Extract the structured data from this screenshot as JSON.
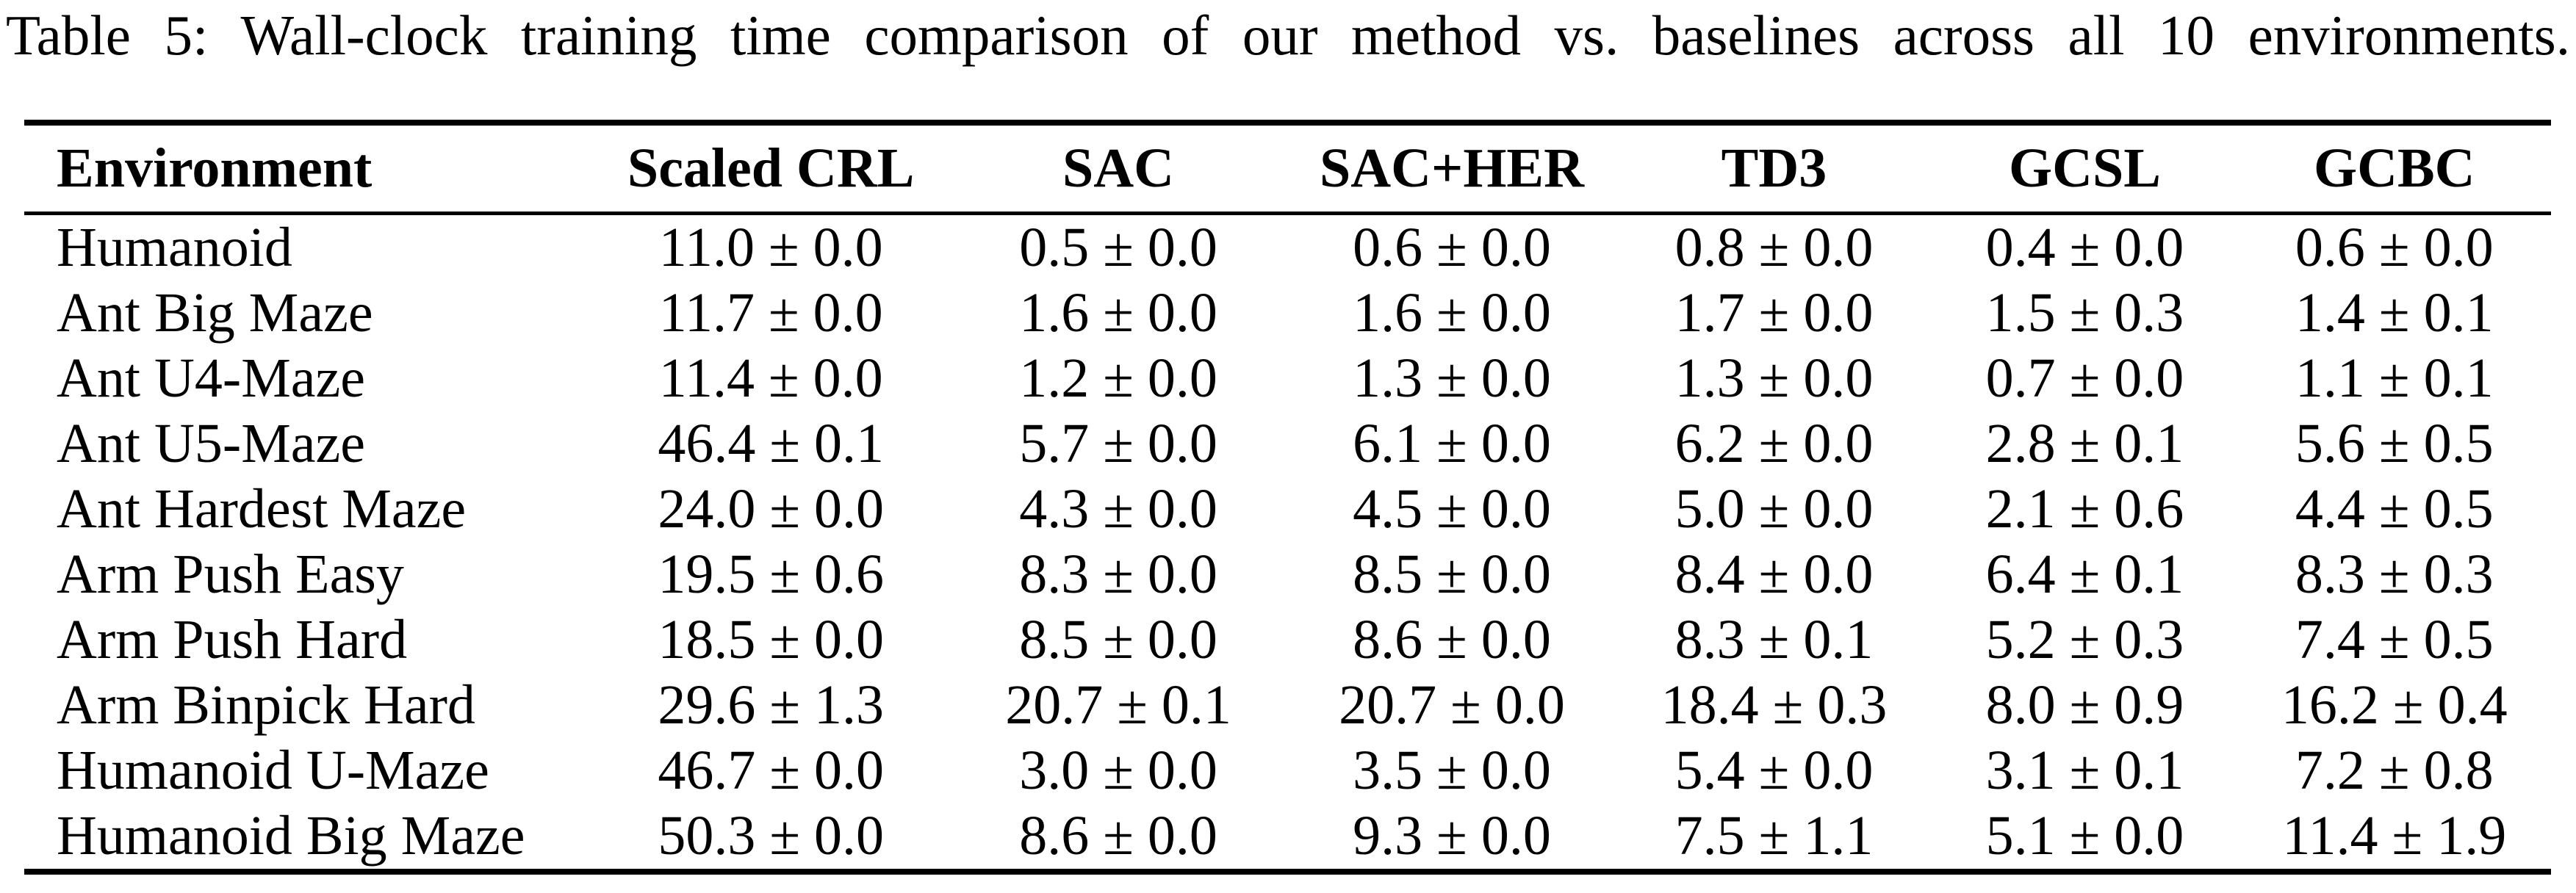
{
  "caption": "Table 5: Wall-clock training time comparison of our method vs. baselines across all 10 environments.",
  "colors": {
    "text": "#000000",
    "background": "#ffffff",
    "rule": "#000000"
  },
  "table": {
    "columns": [
      "Environment",
      "Scaled CRL",
      "SAC",
      "SAC+HER",
      "TD3",
      "GCSL",
      "GCBC"
    ],
    "rows": [
      {
        "environment": "Humanoid",
        "values": [
          "11.0 ± 0.0",
          "0.5 ± 0.0",
          "0.6 ± 0.0",
          "0.8 ± 0.0",
          "0.4 ± 0.0",
          "0.6 ± 0.0"
        ]
      },
      {
        "environment": "Ant Big Maze",
        "values": [
          "11.7 ± 0.0",
          "1.6 ± 0.0",
          "1.6 ± 0.0",
          "1.7 ± 0.0",
          "1.5 ± 0.3",
          "1.4 ± 0.1"
        ]
      },
      {
        "environment": "Ant U4-Maze",
        "values": [
          "11.4 ± 0.0",
          "1.2 ± 0.0",
          "1.3 ± 0.0",
          "1.3 ± 0.0",
          "0.7 ± 0.0",
          "1.1 ± 0.1"
        ]
      },
      {
        "environment": "Ant U5-Maze",
        "values": [
          "46.4 ± 0.1",
          "5.7 ± 0.0",
          "6.1 ± 0.0",
          "6.2 ± 0.0",
          "2.8 ± 0.1",
          "5.6 ± 0.5"
        ]
      },
      {
        "environment": "Ant Hardest Maze",
        "values": [
          "24.0 ± 0.0",
          "4.3 ± 0.0",
          "4.5 ± 0.0",
          "5.0 ± 0.0",
          "2.1 ± 0.6",
          "4.4 ± 0.5"
        ]
      },
      {
        "environment": "Arm Push Easy",
        "values": [
          "19.5 ± 0.6",
          "8.3 ± 0.0",
          "8.5 ± 0.0",
          "8.4 ± 0.0",
          "6.4 ± 0.1",
          "8.3 ± 0.3"
        ]
      },
      {
        "environment": "Arm Push Hard",
        "values": [
          "18.5 ± 0.0",
          "8.5 ± 0.0",
          "8.6 ± 0.0",
          "8.3 ± 0.1",
          "5.2 ± 0.3",
          "7.4 ± 0.5"
        ]
      },
      {
        "environment": "Arm Binpick Hard",
        "values": [
          "29.6 ± 1.3",
          "20.7 ± 0.1",
          "20.7 ± 0.0",
          "18.4 ± 0.3",
          "8.0 ± 0.9",
          "16.2 ± 0.4"
        ]
      },
      {
        "environment": "Humanoid U-Maze",
        "values": [
          "46.7 ± 0.0",
          "3.0 ± 0.0",
          "3.5 ± 0.0",
          "5.4 ± 0.0",
          "3.1 ± 0.1",
          "7.2 ± 0.8"
        ]
      },
      {
        "environment": "Humanoid Big Maze",
        "values": [
          "50.3 ± 0.0",
          "8.6 ± 0.0",
          "9.3 ± 0.0",
          "7.5 ± 1.1",
          "5.1 ± 0.0",
          "11.4 ± 1.9"
        ]
      }
    ]
  }
}
